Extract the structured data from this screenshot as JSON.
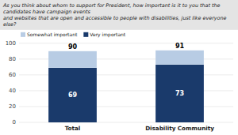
{
  "chart_data": {
    "type": "bar",
    "stacked": true,
    "title": "As you think about whom to support for President, how important is it to you that the candidates have campaign events\nand websites that are open and accessible to people with disabilities, just like everyone else?",
    "categories": [
      "Total",
      "Disability Community"
    ],
    "series": [
      {
        "name": "Very important",
        "color": "#1a3a6b",
        "values": [
          69,
          73
        ],
        "data_labels": true
      },
      {
        "name": "Somewhat important",
        "color": "#b8cce4",
        "values": [
          21,
          18
        ]
      }
    ],
    "totals": [
      90,
      91
    ],
    "ylim": [
      0,
      100
    ],
    "yticks": [
      0,
      20,
      40,
      60,
      80,
      100
    ],
    "grid": true,
    "legend": "upper left"
  }
}
